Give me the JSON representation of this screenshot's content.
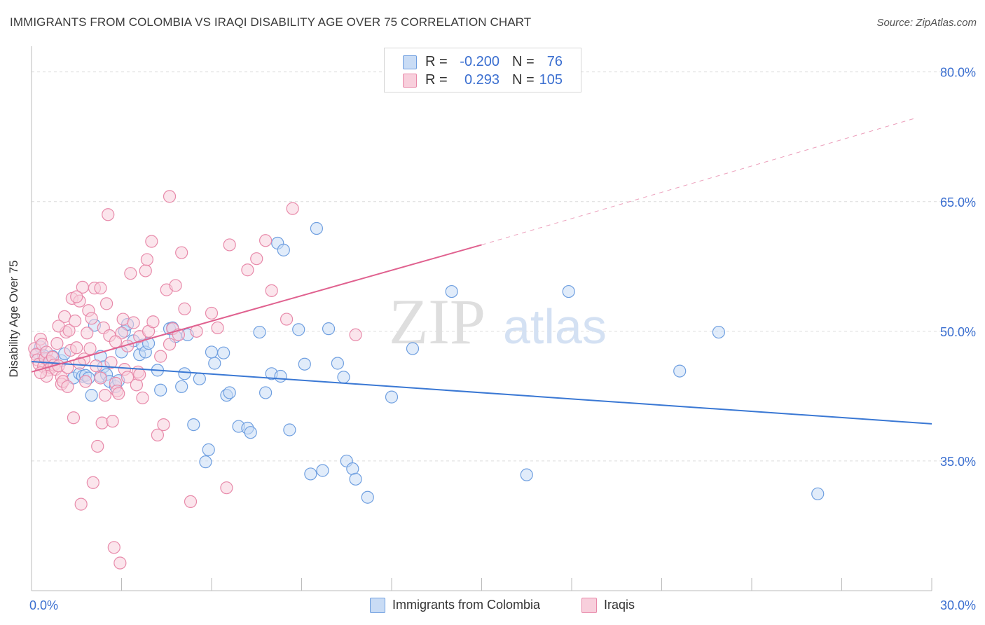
{
  "title": "IMMIGRANTS FROM COLOMBIA VS IRAQI DISABILITY AGE OVER 75 CORRELATION CHART",
  "source": "Source: ZipAtlas.com",
  "watermark": {
    "zip": "ZIP",
    "atlas": "atlas"
  },
  "legend": {
    "rows": [
      {
        "r_label": "R =",
        "r_value": "-0.200",
        "n_label": "N =",
        "n_value": "76",
        "color": "#6f9fe0",
        "fill": "#c9dcf5"
      },
      {
        "r_label": "R =",
        "r_value": "0.293",
        "n_label": "N =",
        "n_value": "105",
        "color": "#e88aaa",
        "fill": "#f8cfdc"
      }
    ]
  },
  "bottom_legend": [
    {
      "label": "Immigrants from Colombia",
      "color": "#6f9fe0",
      "fill": "#c9dcf5"
    },
    {
      "label": "Iraqis",
      "color": "#e88aaa",
      "fill": "#f8cfdc"
    }
  ],
  "chart_data": {
    "type": "scatter",
    "title": "IMMIGRANTS FROM COLOMBIA VS IRAQI DISABILITY AGE OVER 75 CORRELATION CHART",
    "xlabel": "",
    "ylabel": "Disability Age Over 75",
    "xlim": [
      0,
      30
    ],
    "ylim": [
      20,
      82
    ],
    "x_tick_labels": [
      "0.0%",
      "30.0%"
    ],
    "y_ticks": [
      35,
      50,
      65,
      80
    ],
    "y_tick_labels": [
      "35.0%",
      "50.0%",
      "65.0%",
      "80.0%"
    ],
    "grid": "horizontal dashed",
    "legend_position": "top-center",
    "series": [
      {
        "name": "Immigrants from Colombia",
        "color": "#6f9fe0",
        "fill": "#c9dcf5",
        "trend": {
          "x": [
            0,
            30
          ],
          "y": [
            46.5,
            39.3
          ],
          "color": "#3a78d4"
        },
        "points": [
          [
            0.2,
            47.5
          ],
          [
            0.3,
            48.2
          ],
          [
            0.4,
            47.2
          ],
          [
            0.5,
            46.8
          ],
          [
            0.6,
            46.3
          ],
          [
            0.7,
            47.1
          ],
          [
            1.0,
            46.6
          ],
          [
            1.1,
            47.4
          ],
          [
            1.4,
            44.6
          ],
          [
            1.6,
            45.1
          ],
          [
            1.7,
            44.8
          ],
          [
            1.8,
            44.9
          ],
          [
            1.9,
            44.6
          ],
          [
            2.0,
            42.6
          ],
          [
            2.1,
            50.7
          ],
          [
            2.3,
            44.8
          ],
          [
            2.3,
            47.1
          ],
          [
            2.4,
            45.9
          ],
          [
            2.5,
            45.0
          ],
          [
            2.6,
            44.2
          ],
          [
            2.8,
            43.6
          ],
          [
            2.9,
            44.3
          ],
          [
            3.0,
            47.6
          ],
          [
            3.1,
            50.0
          ],
          [
            3.2,
            50.8
          ],
          [
            3.4,
            48.9
          ],
          [
            3.6,
            47.3
          ],
          [
            3.7,
            48.4
          ],
          [
            3.8,
            47.6
          ],
          [
            3.9,
            48.6
          ],
          [
            4.2,
            45.5
          ],
          [
            4.3,
            43.2
          ],
          [
            4.6,
            50.3
          ],
          [
            4.7,
            50.4
          ],
          [
            4.8,
            49.4
          ],
          [
            5.0,
            43.6
          ],
          [
            5.1,
            45.1
          ],
          [
            5.2,
            49.6
          ],
          [
            5.4,
            39.2
          ],
          [
            5.6,
            44.5
          ],
          [
            5.8,
            34.9
          ],
          [
            5.9,
            36.3
          ],
          [
            6.1,
            46.3
          ],
          [
            6.0,
            47.6
          ],
          [
            6.4,
            47.5
          ],
          [
            6.5,
            42.6
          ],
          [
            6.6,
            42.9
          ],
          [
            6.9,
            39.0
          ],
          [
            7.2,
            38.8
          ],
          [
            7.3,
            38.3
          ],
          [
            7.6,
            49.9
          ],
          [
            7.8,
            42.9
          ],
          [
            8.0,
            45.1
          ],
          [
            8.2,
            60.2
          ],
          [
            8.3,
            44.8
          ],
          [
            8.4,
            59.4
          ],
          [
            8.6,
            38.6
          ],
          [
            8.9,
            50.2
          ],
          [
            9.1,
            46.2
          ],
          [
            9.3,
            33.5
          ],
          [
            9.5,
            61.9
          ],
          [
            9.7,
            33.9
          ],
          [
            9.9,
            50.3
          ],
          [
            10.2,
            46.3
          ],
          [
            10.4,
            44.7
          ],
          [
            10.5,
            35.0
          ],
          [
            10.7,
            34.1
          ],
          [
            10.8,
            32.9
          ],
          [
            11.2,
            30.8
          ],
          [
            12.0,
            42.4
          ],
          [
            12.7,
            48.0
          ],
          [
            14.0,
            54.6
          ],
          [
            16.5,
            33.4
          ],
          [
            17.9,
            54.6
          ],
          [
            21.6,
            45.4
          ],
          [
            22.9,
            49.9
          ],
          [
            26.2,
            31.2
          ]
        ]
      },
      {
        "name": "Iraqis",
        "color": "#e88aaa",
        "fill": "#f8cfdc",
        "trend": {
          "x": [
            0,
            15
          ],
          "y": [
            45.3,
            60.0
          ],
          "color": "#e0618f"
        },
        "trend_extension": {
          "x": [
            15,
            29.5
          ],
          "y": [
            60.0,
            74.7
          ]
        },
        "points": [
          [
            0.1,
            48.0
          ],
          [
            0.15,
            47.3
          ],
          [
            0.2,
            46.7
          ],
          [
            0.25,
            46.2
          ],
          [
            0.3,
            49.1
          ],
          [
            0.35,
            48.5
          ],
          [
            0.4,
            45.9
          ],
          [
            0.45,
            46.9
          ],
          [
            0.5,
            47.6
          ],
          [
            0.55,
            45.5
          ],
          [
            0.6,
            46.5
          ],
          [
            0.65,
            45.8
          ],
          [
            0.7,
            47.0
          ],
          [
            0.75,
            46.1
          ],
          [
            0.8,
            45.6
          ],
          [
            0.85,
            48.6
          ],
          [
            0.9,
            46.0
          ],
          [
            1.0,
            44.7
          ],
          [
            1.0,
            43.9
          ],
          [
            1.05,
            44.2
          ],
          [
            1.1,
            51.7
          ],
          [
            1.15,
            49.9
          ],
          [
            1.2,
            43.6
          ],
          [
            1.25,
            50.1
          ],
          [
            1.3,
            47.8
          ],
          [
            1.35,
            53.8
          ],
          [
            1.4,
            40.0
          ],
          [
            1.45,
            51.2
          ],
          [
            1.5,
            48.1
          ],
          [
            1.6,
            53.5
          ],
          [
            1.65,
            30.0
          ],
          [
            1.7,
            55.1
          ],
          [
            1.75,
            46.8
          ],
          [
            1.8,
            44.2
          ],
          [
            1.85,
            49.8
          ],
          [
            1.9,
            52.4
          ],
          [
            2.0,
            51.5
          ],
          [
            2.05,
            32.5
          ],
          [
            2.1,
            55.0
          ],
          [
            2.15,
            46.0
          ],
          [
            2.2,
            36.7
          ],
          [
            2.3,
            44.6
          ],
          [
            2.35,
            39.4
          ],
          [
            2.4,
            50.4
          ],
          [
            2.45,
            42.6
          ],
          [
            2.5,
            53.2
          ],
          [
            2.55,
            63.5
          ],
          [
            2.6,
            49.5
          ],
          [
            2.7,
            39.6
          ],
          [
            2.75,
            25.0
          ],
          [
            2.8,
            44.0
          ],
          [
            2.85,
            43.1
          ],
          [
            2.9,
            42.8
          ],
          [
            2.95,
            23.2
          ],
          [
            3.0,
            49.8
          ],
          [
            3.05,
            51.4
          ],
          [
            3.1,
            45.6
          ],
          [
            3.2,
            48.3
          ],
          [
            3.3,
            56.7
          ],
          [
            3.4,
            51.0
          ],
          [
            3.5,
            43.8
          ],
          [
            3.55,
            45.3
          ],
          [
            3.6,
            49.4
          ],
          [
            3.7,
            42.3
          ],
          [
            3.8,
            57.0
          ],
          [
            3.85,
            58.3
          ],
          [
            3.9,
            50.0
          ],
          [
            4.0,
            60.4
          ],
          [
            4.05,
            51.1
          ],
          [
            4.2,
            38.0
          ],
          [
            4.3,
            47.1
          ],
          [
            4.4,
            39.2
          ],
          [
            4.5,
            54.8
          ],
          [
            4.6,
            65.6
          ],
          [
            4.7,
            50.3
          ],
          [
            4.8,
            55.3
          ],
          [
            4.9,
            49.6
          ],
          [
            5.0,
            59.1
          ],
          [
            5.1,
            52.6
          ],
          [
            5.3,
            30.3
          ],
          [
            5.5,
            50.0
          ],
          [
            6.0,
            52.1
          ],
          [
            6.5,
            31.9
          ],
          [
            6.6,
            60.0
          ],
          [
            7.2,
            57.1
          ],
          [
            7.5,
            58.4
          ],
          [
            7.8,
            60.5
          ],
          [
            8.0,
            54.7
          ],
          [
            8.5,
            51.4
          ],
          [
            8.7,
            64.2
          ],
          [
            10.8,
            49.6
          ],
          [
            1.5,
            54.0
          ],
          [
            1.2,
            45.8
          ],
          [
            0.9,
            50.6
          ],
          [
            2.3,
            55.0
          ],
          [
            3.2,
            44.7
          ],
          [
            4.6,
            48.5
          ],
          [
            0.5,
            44.8
          ],
          [
            2.8,
            48.8
          ],
          [
            1.6,
            46.3
          ],
          [
            3.6,
            45.0
          ],
          [
            0.3,
            45.2
          ],
          [
            1.95,
            48.0
          ],
          [
            2.65,
            46.4
          ],
          [
            6.2,
            50.4
          ]
        ]
      }
    ]
  }
}
